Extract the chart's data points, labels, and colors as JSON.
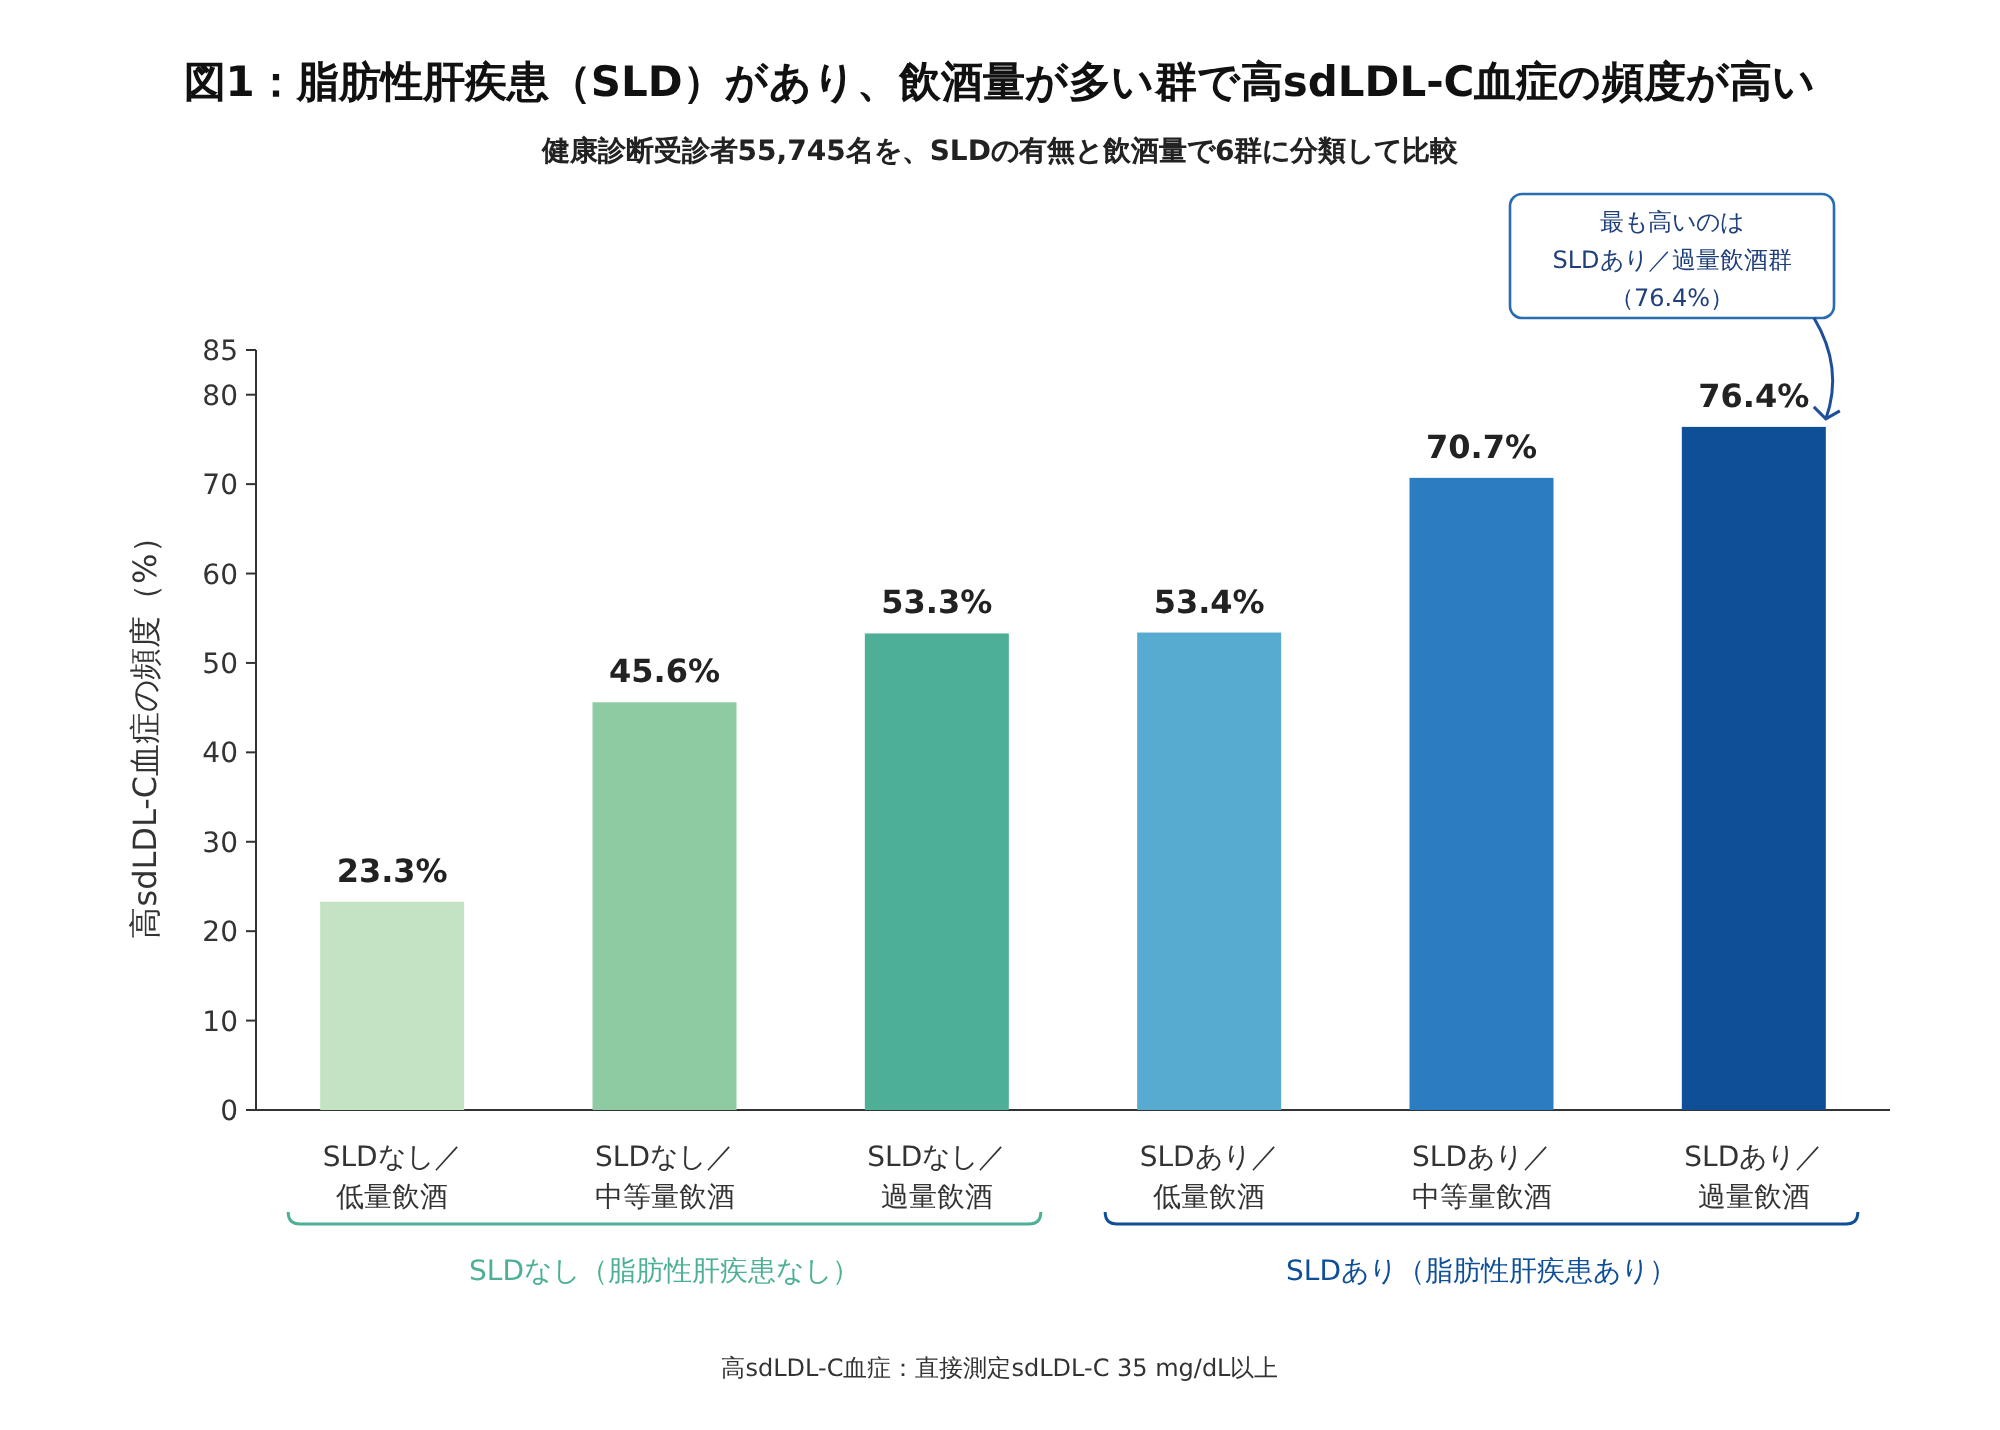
{
  "chart_data": {
    "type": "bar",
    "title": "図1：脂肪性肝疾患（SLD）があり、飲酒量が多い群で高sdLDL-C血症の頻度が高い",
    "subtitle": "健康診断受診者55,745名を、SLDの有無と飲酒量で6群に分類して比較",
    "ylabel": "高sdLDL-C血症の頻度（%）",
    "categories": [
      "SLDなし／低量飲酒",
      "SLDなし／中等量飲酒",
      "SLDなし／過量飲酒",
      "SLDあり／低量飲酒",
      "SLDあり／中等量飲酒",
      "SLDあり／過量飲酒"
    ],
    "values": [
      23.3,
      45.6,
      53.3,
      53.4,
      70.7,
      76.4
    ],
    "value_labels": [
      "23.3%",
      "45.6%",
      "53.3%",
      "53.4%",
      "70.7%",
      "76.4%"
    ],
    "colors": [
      "#c4e3c4",
      "#8ecba2",
      "#4db096",
      "#57abd0",
      "#2b7cc0",
      "#0e4f97"
    ],
    "ylim": [
      0,
      85
    ],
    "yticks": [
      0,
      10,
      20,
      30,
      40,
      50,
      60,
      70,
      80,
      85
    ],
    "grid": false,
    "annotations": [
      "最も高いのはSLDあり／過量飲酒群（76.4%）",
      "SLDなし（脂肪性肝疾患なし）",
      "SLDあり（脂肪性肝疾患あり）",
      "高sdLDL-C血症：直接測定sdLDL-C 35 mg/dL以上"
    ]
  }
}
